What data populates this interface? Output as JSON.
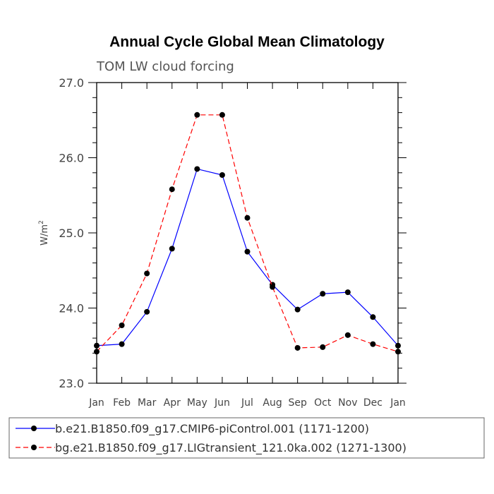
{
  "chart_data": {
    "type": "line",
    "title": "Annual Cycle Global Mean Climatology",
    "subtitle": "TOM LW cloud forcing",
    "xlabel": "",
    "ylabel": "W/m",
    "ylabel_superscript": "2",
    "categories": [
      "Jan",
      "Feb",
      "Mar",
      "Apr",
      "May",
      "Jun",
      "Jul",
      "Aug",
      "Sep",
      "Oct",
      "Nov",
      "Dec",
      "Jan"
    ],
    "ylim": [
      23.0,
      27.0
    ],
    "yticks": [
      23.0,
      24.0,
      25.0,
      26.0,
      27.0
    ],
    "ytick_labels": [
      "23.0",
      "24.0",
      "25.0",
      "26.0",
      "27.0"
    ],
    "grid": false,
    "legend_position": "bottom",
    "series": [
      {
        "name": "b.e21.B1850.f09_g17.CMIP6-piControl.001 (1171-1200)",
        "color": "#0000ff",
        "dash": "solid",
        "values": [
          23.5,
          23.52,
          23.95,
          24.79,
          25.85,
          25.77,
          24.75,
          24.31,
          23.98,
          24.19,
          24.21,
          23.88,
          23.5
        ]
      },
      {
        "name": "bg.e21.B1850.f09_g17.LIGtransient_121.0ka.002 (1271-1300)",
        "color": "#ff0000",
        "dash": "dashed",
        "values": [
          23.42,
          23.77,
          24.46,
          25.58,
          26.57,
          26.57,
          25.2,
          24.28,
          23.47,
          23.48,
          23.64,
          23.52,
          23.42
        ]
      }
    ]
  }
}
